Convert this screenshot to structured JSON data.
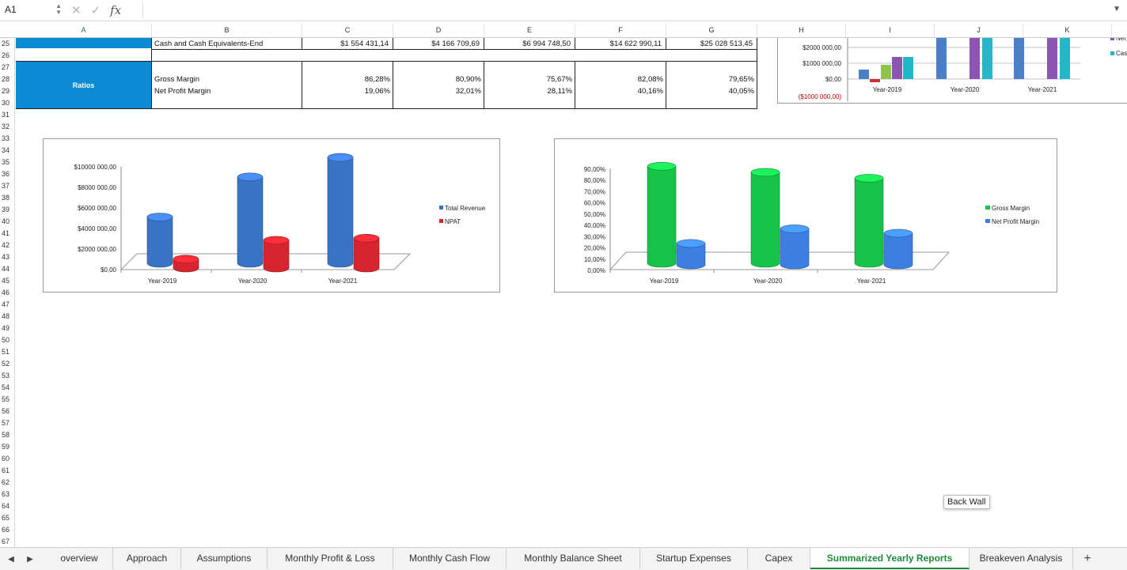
{
  "formula_bar": {
    "cell_ref": "A1",
    "fx_label": "fx",
    "formula": ""
  },
  "columns": [
    "A",
    "B",
    "C",
    "D",
    "E",
    "F",
    "G",
    "H",
    "I",
    "J",
    "K"
  ],
  "rows": [
    "25",
    "26",
    "27",
    "28",
    "29",
    "30",
    "31",
    "32",
    "33",
    "34",
    "35",
    "36",
    "37",
    "38",
    "39",
    "40",
    "41",
    "42",
    "43",
    "44",
    "45",
    "46",
    "47",
    "48",
    "49",
    "50",
    "51",
    "52",
    "53",
    "54",
    "55",
    "56",
    "57",
    "58",
    "59",
    "60",
    "61",
    "62",
    "63",
    "64",
    "65",
    "66",
    "67"
  ],
  "table": {
    "cash_label": "Cash and Cash Equivalents-End",
    "cash_values": [
      "$1 554 431,14",
      "$4 166 709,69",
      "$6 994 748,50",
      "$14 622 990,11",
      "$25 028 513,45"
    ],
    "ratios_label": "Ratios",
    "gross_label": "Gross Margin",
    "gross_values": [
      "86,28%",
      "80,90%",
      "75,67%",
      "82,08%",
      "79,65%"
    ],
    "npm_label": "Net Profit Margin",
    "npm_values": [
      "19,06%",
      "32,01%",
      "28,11%",
      "40,16%",
      "40,05%"
    ]
  },
  "chart_data": [
    {
      "type": "bar",
      "categories": [
        "Year-2019",
        "Year-2020",
        "Year-2021"
      ],
      "yticks": [
        "$10000 000,00",
        "$8000 000,00",
        "$6000 000,00",
        "$4000 000,00",
        "$2000 000,00",
        "$0,00"
      ],
      "ylim": [
        0,
        10000000
      ],
      "series": [
        {
          "name": "Total Revenue",
          "values": [
            4500000,
            8400000,
            10300000
          ],
          "color": "#3a72c4"
        },
        {
          "name": "NPAT",
          "values": [
            860000,
            2700000,
            2900000
          ],
          "color": "#d6252e"
        }
      ],
      "legend": "right"
    },
    {
      "type": "bar",
      "categories": [
        "Year-2019",
        "Year-2020",
        "Year-2021"
      ],
      "yticks": [
        "90,00%",
        "80,00%",
        "70,00%",
        "60,00%",
        "50,00%",
        "40,00%",
        "30,00%",
        "20,00%",
        "10,00%",
        "0,00%"
      ],
      "ylim": [
        0,
        90
      ],
      "series": [
        {
          "name": "Gross Margin",
          "values": [
            86.28,
            80.9,
            75.67
          ],
          "color": "#16c24a"
        },
        {
          "name": "Net Profit Margin",
          "values": [
            19.06,
            32.01,
            28.11
          ],
          "color": "#3c7fe0"
        }
      ],
      "legend": "right"
    },
    {
      "type": "bar",
      "categories": [
        "Year-2019",
        "Year-2020",
        "Year-2021"
      ],
      "yticks": [
        "$2000 000,00",
        "$1000 000,00",
        "$0,00",
        "($1000 000,00)"
      ],
      "ylim": [
        -1000000,
        2600000
      ],
      "series": [
        {
          "values": [
            600000,
            2600000,
            2600000
          ],
          "color": "#4b7fc8"
        },
        {
          "values": [
            -200000,
            0,
            0
          ],
          "color": "#cf2f36"
        },
        {
          "values": [
            900000,
            0,
            0
          ],
          "color": "#8fc34a"
        },
        {
          "values": [
            1400000,
            2600000,
            2600000
          ],
          "color": "#8a55b3"
        },
        {
          "values": [
            1400000,
            2600000,
            2600000
          ],
          "color": "#21b8c9"
        }
      ],
      "legend_partial": [
        "Net",
        "Cash"
      ]
    }
  ],
  "tooltip": "Back Wall",
  "tabs": [
    "overview",
    "Approach",
    "Assumptions",
    "Monthly Profit & Loss",
    "Monthly Cash Flow",
    "Monthly Balance Sheet",
    "Startup Expenses",
    "Capex",
    "Summarized Yearly Reports",
    "Breakeven Analysis"
  ],
  "active_tab": "Summarized Yearly Reports",
  "add_sheet": "+"
}
